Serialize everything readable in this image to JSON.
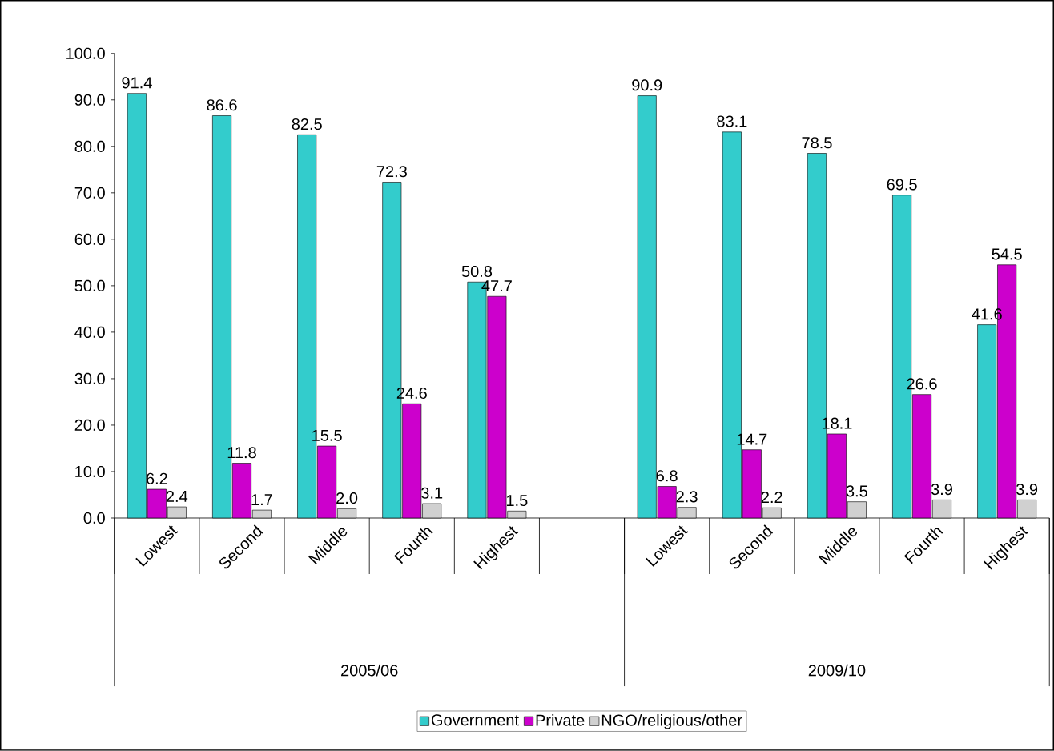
{
  "chart_data": {
    "type": "bar",
    "categories": [
      "Lowest",
      "Second",
      "Middle",
      "Fourth",
      "Highest",
      null,
      "Lowest",
      "Second",
      "Middle",
      "Fourth",
      "Highest"
    ],
    "series": [
      {
        "name": "Government",
        "color": "#33cccc",
        "values": [
          91.4,
          86.6,
          82.5,
          72.3,
          50.8,
          null,
          90.9,
          83.1,
          78.5,
          69.5,
          41.6
        ],
        "value_labels": [
          "91.4",
          "86.6",
          "82.5",
          "72.3",
          "50.8",
          null,
          "90.9",
          "83.1",
          "78.5",
          "69.5",
          "41.6"
        ]
      },
      {
        "name": "Private",
        "color": "#cc00cc",
        "values": [
          6.2,
          11.8,
          15.5,
          24.6,
          47.7,
          null,
          6.8,
          14.7,
          18.1,
          26.6,
          54.5
        ],
        "value_labels": [
          "6.2",
          "11.8",
          "15.5",
          "24.6",
          "47.7",
          null,
          "6.8",
          "14.7",
          "18.1",
          "26.6",
          "54.5"
        ]
      },
      {
        "name": "NGO/religious/other",
        "color": "#d0d0d0",
        "values": [
          2.4,
          1.7,
          2.0,
          3.1,
          1.5,
          null,
          2.3,
          2.2,
          3.5,
          3.9,
          3.9
        ],
        "value_labels": [
          "2.4",
          "1.7",
          "2.0",
          "3.1",
          "1.5",
          null,
          "2.3",
          "2.2",
          "3.5",
          "3.9",
          "3.9"
        ]
      }
    ],
    "annotations": [
      "2005/06",
      "2009/10"
    ],
    "ylim": [
      0,
      100
    ],
    "yticks": [
      {
        "value": 0,
        "label": "0.0"
      },
      {
        "value": 10,
        "label": "10.0"
      },
      {
        "value": 20,
        "label": "20.0"
      },
      {
        "value": 30,
        "label": "30.0"
      },
      {
        "value": 40,
        "label": "40.0"
      },
      {
        "value": 50,
        "label": "50.0"
      },
      {
        "value": 60,
        "label": "60.0"
      },
      {
        "value": 70,
        "label": "70.0"
      },
      {
        "value": 80,
        "label": "80.0"
      },
      {
        "value": 90,
        "label": "90.0"
      },
      {
        "value": 100,
        "label": "100.0"
      }
    ],
    "legend": "bottom",
    "grid": false
  }
}
